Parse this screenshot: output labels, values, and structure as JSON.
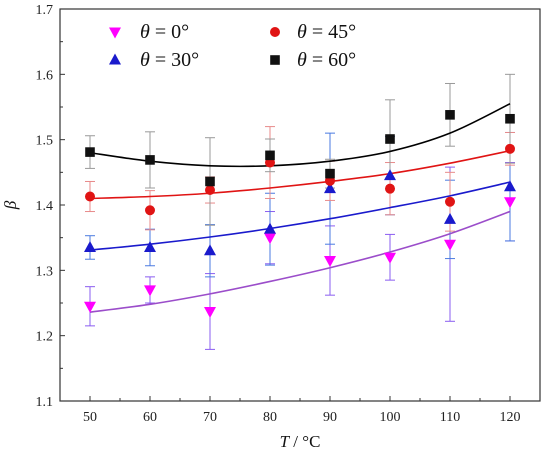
{
  "chart_data": {
    "type": "scatter",
    "xlabel_var": "T",
    "xlabel_unit": "°C",
    "ylabel": "β",
    "xlim": [
      45,
      125
    ],
    "ylim": [
      1.1,
      1.7
    ],
    "x_ticks": [
      50,
      60,
      70,
      80,
      90,
      100,
      110,
      120
    ],
    "y_ticks": [
      1.1,
      1.2,
      1.3,
      1.4,
      1.5,
      1.6,
      1.7
    ],
    "legend_position": "top-left",
    "series": [
      {
        "name": "θ = 0°",
        "label_var": "θ",
        "label_value": "= 0°",
        "marker": "triangle-down",
        "color": "#ff00ff",
        "fit_color": "#9b4dca",
        "error_color": "#8a5cf0",
        "x": [
          50,
          60,
          70,
          80,
          90,
          100,
          110,
          120
        ],
        "y": [
          1.245,
          1.27,
          1.237,
          1.35,
          1.315,
          1.32,
          1.34,
          1.405
        ],
        "err": [
          0.03,
          0.02,
          0.058,
          0.04,
          0.053,
          0.035,
          0.118,
          0.06
        ],
        "fit": [
          1.236,
          1.248,
          1.264,
          1.283,
          1.304,
          1.328,
          1.356,
          1.39
        ]
      },
      {
        "name": "θ = 30°",
        "label_var": "θ",
        "label_value": "= 30°",
        "marker": "triangle-up",
        "color": "#1a1acc",
        "fit_color": "#1a1acc",
        "error_color": "#4a7ae0",
        "x": [
          50,
          60,
          70,
          80,
          90,
          100,
          110,
          120
        ],
        "y": [
          1.335,
          1.335,
          1.33,
          1.363,
          1.425,
          1.445,
          1.378,
          1.428
        ],
        "err": [
          0.018,
          0.028,
          0.04,
          0.055,
          0.085,
          0.06,
          0.06,
          0.083
        ],
        "fit": [
          1.331,
          1.34,
          1.351,
          1.364,
          1.379,
          1.396,
          1.414,
          1.435
        ]
      },
      {
        "name": "θ = 45°",
        "label_var": "θ",
        "label_value": "= 45°",
        "marker": "circle",
        "color": "#e01414",
        "fit_color": "#e01414",
        "error_color": "#e88a8a",
        "x": [
          50,
          60,
          70,
          80,
          90,
          100,
          110,
          120
        ],
        "y": [
          1.413,
          1.392,
          1.423,
          1.465,
          1.437,
          1.425,
          1.405,
          1.486
        ],
        "err": [
          0.023,
          0.03,
          0.02,
          0.055,
          0.03,
          0.04,
          0.045,
          0.025
        ],
        "fit": [
          1.41,
          1.413,
          1.418,
          1.426,
          1.436,
          1.448,
          1.464,
          1.483
        ]
      },
      {
        "name": "θ = 60°",
        "label_var": "θ",
        "label_value": "= 60°",
        "marker": "square",
        "color": "#111111",
        "fit_color": "#000000",
        "error_color": "#999999",
        "x": [
          50,
          60,
          70,
          80,
          90,
          100,
          110,
          120
        ],
        "y": [
          1.481,
          1.469,
          1.436,
          1.476,
          1.448,
          1.501,
          1.538,
          1.532
        ],
        "err": [
          0.025,
          0.043,
          0.067,
          0.025,
          0.022,
          0.06,
          0.048,
          0.068
        ],
        "fit": [
          1.48,
          1.467,
          1.46,
          1.46,
          1.467,
          1.482,
          1.51,
          1.555
        ]
      }
    ]
  }
}
